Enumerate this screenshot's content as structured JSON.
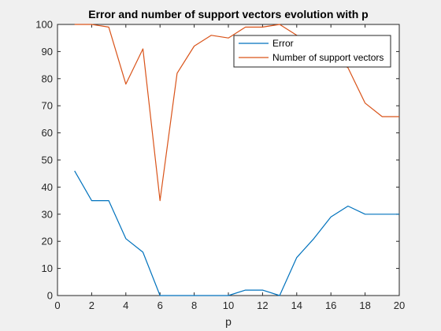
{
  "chart_data": {
    "type": "line",
    "title": "Error and number of support vectors evolution with p",
    "xlabel": "p",
    "ylabel": "",
    "xlim": [
      0,
      20
    ],
    "ylim": [
      0,
      100
    ],
    "xticks": [
      0,
      2,
      4,
      6,
      8,
      10,
      12,
      14,
      16,
      18,
      20
    ],
    "yticks": [
      0,
      10,
      20,
      30,
      40,
      50,
      60,
      70,
      80,
      90,
      100
    ],
    "grid": false,
    "legend_position": "top-right",
    "x": [
      1,
      2,
      3,
      4,
      5,
      6,
      7,
      8,
      9,
      10,
      11,
      12,
      13,
      14,
      15,
      16,
      17,
      18,
      19,
      20
    ],
    "series": [
      {
        "name": "Error",
        "color": "#0072BD",
        "values": [
          46,
          35,
          35,
          21,
          16,
          0,
          0,
          0,
          0,
          0,
          2,
          2,
          0,
          14,
          21,
          29,
          33,
          30,
          30,
          30
        ]
      },
      {
        "name": "Number of support vectors",
        "color": "#D95319",
        "values": [
          100,
          100,
          99,
          78,
          91,
          35,
          82,
          92,
          96,
          95,
          99,
          99,
          100,
          96,
          92,
          88,
          84,
          71,
          66,
          66
        ]
      }
    ]
  }
}
